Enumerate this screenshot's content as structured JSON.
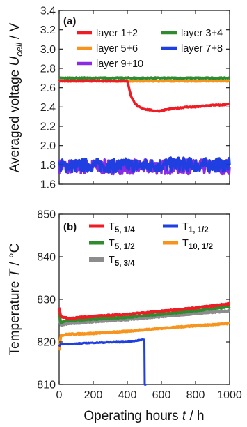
{
  "chart_data": [
    {
      "type": "line",
      "panel": "(a)",
      "ylabel": {
        "pre": "Averaged voltage ",
        "sym": "U",
        "sub": "cell",
        "post": " / V"
      },
      "xlim": [
        0,
        1000
      ],
      "ylim": [
        1.6,
        3.4
      ],
      "yticks": [
        "1.6",
        "1.8",
        "2.0",
        "2.2",
        "2.4",
        "2.6",
        "2.8",
        "3.0",
        "3.2",
        "3.4"
      ],
      "ytick_values": [
        1.6,
        1.8,
        2.0,
        2.2,
        2.4,
        2.6,
        2.8,
        3.0,
        3.2,
        3.4
      ],
      "xticks": [
        0,
        200,
        400,
        600,
        800,
        1000
      ],
      "grid": false,
      "legend_position": "top",
      "series": [
        {
          "name": "layer 1+2",
          "color": "#ee1c24",
          "x": [
            0,
            100,
            200,
            300,
            400,
            410,
            420,
            440,
            460,
            480,
            500,
            530,
            560,
            590,
            620,
            650,
            700,
            750,
            800,
            850,
            900,
            950,
            1000
          ],
          "y": [
            2.67,
            2.67,
            2.67,
            2.67,
            2.67,
            2.6,
            2.52,
            2.45,
            2.41,
            2.39,
            2.38,
            2.37,
            2.36,
            2.36,
            2.37,
            2.38,
            2.39,
            2.4,
            2.4,
            2.41,
            2.42,
            2.42,
            2.43
          ]
        },
        {
          "name": "layer 3+4",
          "color": "#2e8b2e",
          "x": [
            0,
            100,
            200,
            300,
            400,
            500,
            600,
            700,
            800,
            900,
            1000
          ],
          "y": [
            2.7,
            2.7,
            2.7,
            2.7,
            2.7,
            2.7,
            2.7,
            2.7,
            2.7,
            2.7,
            2.7
          ]
        },
        {
          "name": "layer 5+6",
          "color": "#f7941d",
          "x": [
            0,
            100,
            200,
            300,
            400,
            500,
            600,
            700,
            800,
            900,
            1000
          ],
          "y": [
            2.67,
            2.67,
            2.67,
            2.67,
            2.67,
            2.67,
            2.67,
            2.67,
            2.67,
            2.67,
            2.67
          ]
        },
        {
          "name": "layer 7+8",
          "color": "#1f3fe0",
          "x": [
            0,
            100,
            200,
            300,
            400,
            500,
            600,
            700,
            800,
            900,
            1000
          ],
          "y": [
            1.79,
            1.79,
            1.8,
            1.79,
            1.8,
            1.79,
            1.8,
            1.81,
            1.8,
            1.8,
            1.8
          ]
        },
        {
          "name": "layer 9+10",
          "color": "#8b2be2",
          "x": [
            0,
            100,
            200,
            300,
            400,
            500,
            600,
            700,
            800,
            900,
            1000
          ],
          "y": [
            1.78,
            1.78,
            1.78,
            1.78,
            1.78,
            1.78,
            1.78,
            1.78,
            1.78,
            1.78,
            1.78
          ]
        }
      ]
    },
    {
      "type": "line",
      "panel": "(b)",
      "ylabel": {
        "pre": "Temperature ",
        "sym": "T",
        "post": " / °C"
      },
      "xlabel": {
        "pre": "Operating hours ",
        "sym": "t",
        "post": " / h"
      },
      "xlim": [
        0,
        1000
      ],
      "ylim": [
        810,
        850
      ],
      "yticks": [
        "810",
        "820",
        "830",
        "840",
        "850"
      ],
      "ytick_values": [
        810,
        820,
        830,
        840,
        850
      ],
      "xticks": [
        0,
        200,
        400,
        600,
        800,
        1000
      ],
      "xtick_labels": [
        "0",
        "200",
        "400",
        "600",
        "800",
        "1000"
      ],
      "grid": false,
      "legend_position": "top",
      "series": [
        {
          "name": "T",
          "sub": "5, 1/4",
          "color": "#ee1c24",
          "x": [
            0,
            10,
            50,
            200,
            400,
            600,
            800,
            1000
          ],
          "y": [
            828,
            826,
            825.5,
            826,
            826.5,
            827.2,
            828,
            829
          ]
        },
        {
          "name": "T",
          "sub": "1, 1/2",
          "color": "#1f3fe0",
          "x": [
            0,
            10,
            50,
            200,
            400,
            490,
            500,
            502,
            510
          ],
          "y": [
            819,
            819.5,
            819.5,
            819.8,
            820,
            820.5,
            820.5,
            810,
            810
          ]
        },
        {
          "name": "T",
          "sub": "5, 1/2",
          "color": "#2e8b2e",
          "x": [
            0,
            10,
            50,
            200,
            400,
            600,
            800,
            1000
          ],
          "y": [
            827,
            824.5,
            825,
            825.3,
            825.8,
            826.5,
            827.3,
            828.3
          ]
        },
        {
          "name": "T",
          "sub": "10, 1/2",
          "color": "#f7941d",
          "x": [
            0,
            10,
            50,
            200,
            400,
            600,
            800,
            1000
          ],
          "y": [
            818,
            821.5,
            821.8,
            822,
            822.5,
            823.2,
            823.8,
            824.3
          ]
        },
        {
          "name": "T",
          "sub": "5, 3/4",
          "color": "#8c8c8c",
          "x": [
            0,
            10,
            50,
            200,
            400,
            600,
            800,
            1000
          ],
          "y": [
            826,
            824,
            824.3,
            824.8,
            825.3,
            826,
            826.7,
            827.3
          ]
        }
      ]
    }
  ]
}
